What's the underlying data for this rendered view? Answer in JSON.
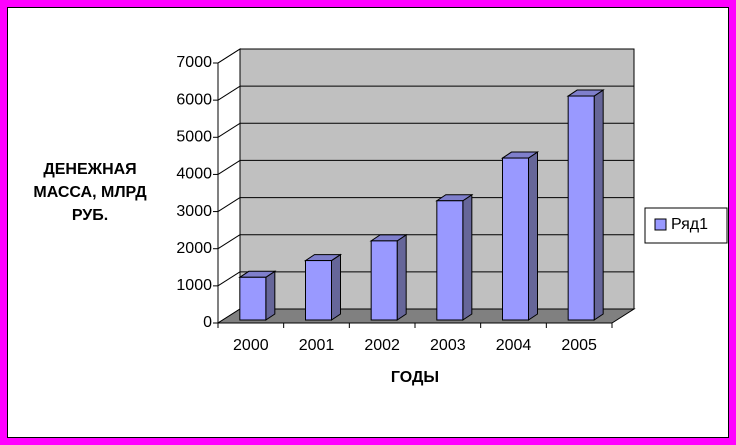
{
  "chart_data": {
    "type": "bar3d",
    "categories": [
      "2000",
      "2001",
      "2002",
      "2003",
      "2004",
      "2005"
    ],
    "series": [
      {
        "name": "Ряд1",
        "color": "#9999ff",
        "values": [
          1150,
          1600,
          2130,
          3210,
          4360,
          6030
        ]
      }
    ],
    "ylim": [
      0,
      7000
    ],
    "yticks": [
      0,
      1000,
      2000,
      3000,
      4000,
      5000,
      6000,
      7000
    ],
    "xlabel": "ГОДЫ",
    "ylabel": "ДЕНЕЖНАЯ МАССА, МЛРД РУБ.",
    "grid": true,
    "legend": "right"
  }
}
